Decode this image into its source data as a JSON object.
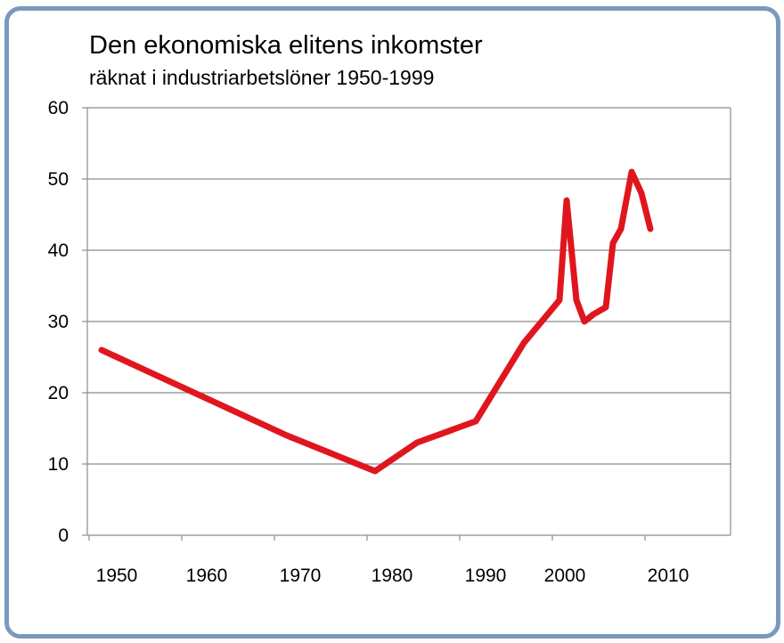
{
  "chart_data": {
    "type": "line",
    "title": "Den ekonomiska elitens inkomster",
    "subtitle": "räknat i industriarbetslöner 1950-1999",
    "xlabel": "",
    "ylabel": "",
    "xlim": [
      1950,
      2010
    ],
    "ylim": [
      0,
      60
    ],
    "x_tick_labels": [
      "1950",
      "1960",
      "1970",
      "1980",
      "1990",
      "2000",
      "2010"
    ],
    "y_tick_labels": [
      "0",
      "10",
      "20",
      "30",
      "40",
      "50",
      "60"
    ],
    "grid": true,
    "legend": "none",
    "line_color": "#e0161e",
    "series": [
      {
        "x": [
          1950,
          1971,
          1980,
          1984,
          1991,
          1996,
          2000,
          2000.8,
          2002,
          2003,
          2004,
          2005,
          2006,
          2007,
          2008,
          2009,
          2010
        ],
        "y": [
          26,
          14,
          9,
          13,
          16,
          27,
          33,
          47,
          33,
          30,
          31,
          32,
          41,
          43,
          51,
          48,
          43
        ]
      }
    ]
  }
}
